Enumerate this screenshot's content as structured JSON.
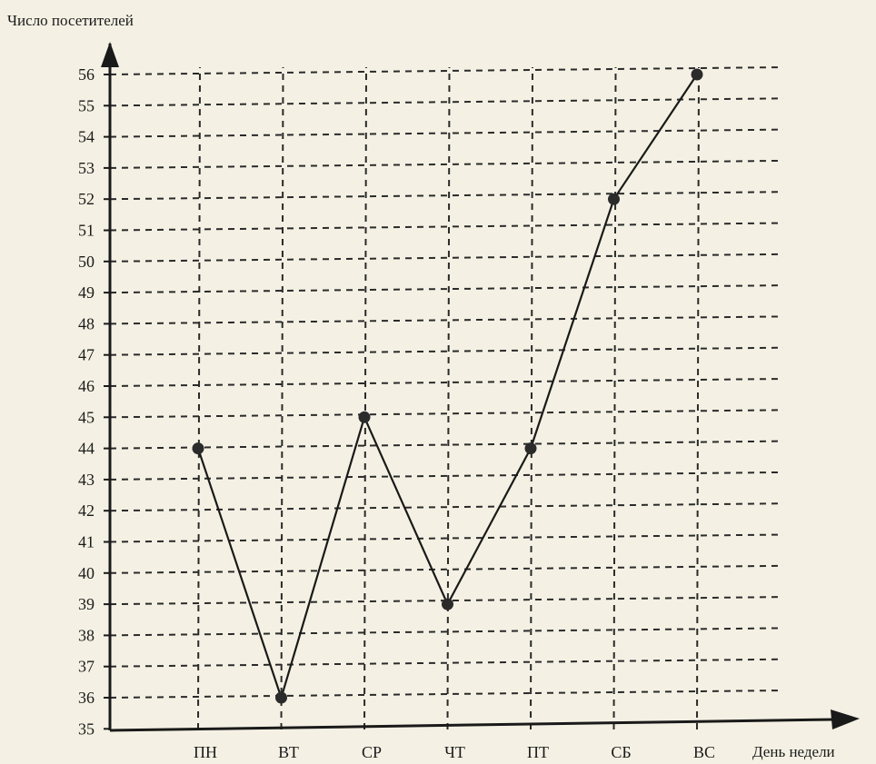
{
  "chart_data": {
    "type": "line",
    "ylabel": "Число посетителей",
    "xlabel": "День недели",
    "categories": [
      "ПН",
      "ВТ",
      "СР",
      "ЧТ",
      "ПТ",
      "СБ",
      "ВС"
    ],
    "series": [
      {
        "values": [
          44,
          36,
          45,
          39,
          44,
          52,
          56
        ]
      }
    ],
    "ylim": [
      35,
      56
    ],
    "y_ticks": [
      35,
      36,
      37,
      38,
      39,
      40,
      41,
      42,
      43,
      44,
      45,
      46,
      47,
      48,
      49,
      50,
      51,
      52,
      53,
      54,
      55,
      56
    ],
    "grid": true,
    "grid_style": "dashed",
    "line_color": "#1a1a1a",
    "marker_color": "#2b2b2b"
  }
}
